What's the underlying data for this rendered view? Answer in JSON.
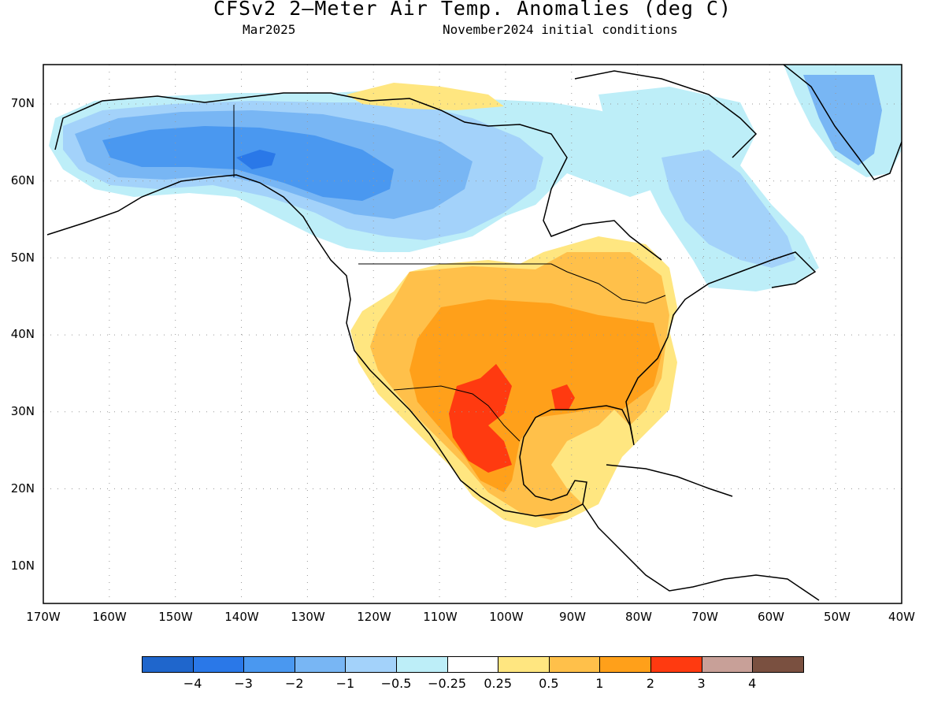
{
  "header": {
    "title": "CFSv2 2–Meter Air Temp. Anomalies (deg C)",
    "valid_month": "Mar2025",
    "initial_conditions": "November2024 initial conditions"
  },
  "map": {
    "projection": "cylindrical equidistant",
    "lon_range": [
      -170,
      -40
    ],
    "lat_range": [
      5,
      75
    ],
    "grid": "dotted",
    "lat_labels": [
      "70N",
      "60N",
      "50N",
      "40N",
      "30N",
      "20N",
      "10N"
    ],
    "lon_labels": [
      "170W",
      "160W",
      "150W",
      "140W",
      "130W",
      "120W",
      "110W",
      "100W",
      "90W",
      "80W",
      "70W",
      "60W",
      "50W",
      "40W"
    ],
    "anomaly_summary": {
      "warm": "Southern and central United States and Mexico, strongest (2 to 3) over northern Mexico / west Texas and Louisiana",
      "cold": "Alaska and northern Canada (-1 to -3), weaker cold over eastern Canada and Greenland"
    }
  },
  "colorbar": {
    "colors": [
      "#1f66cc",
      "#2a78e8",
      "#4a98f0",
      "#78b6f4",
      "#a3d2fa",
      "#bdeef8",
      "#ffffff",
      "#ffe680",
      "#ffc04a",
      "#ffa01a",
      "#ff3a10",
      "#c8a098",
      "#7a5040"
    ],
    "labels": [
      "−4",
      "−3",
      "−2",
      "−1",
      "−0.5",
      "−0.25",
      "0.25",
      "0.5",
      "1",
      "2",
      "3",
      "4"
    ]
  }
}
